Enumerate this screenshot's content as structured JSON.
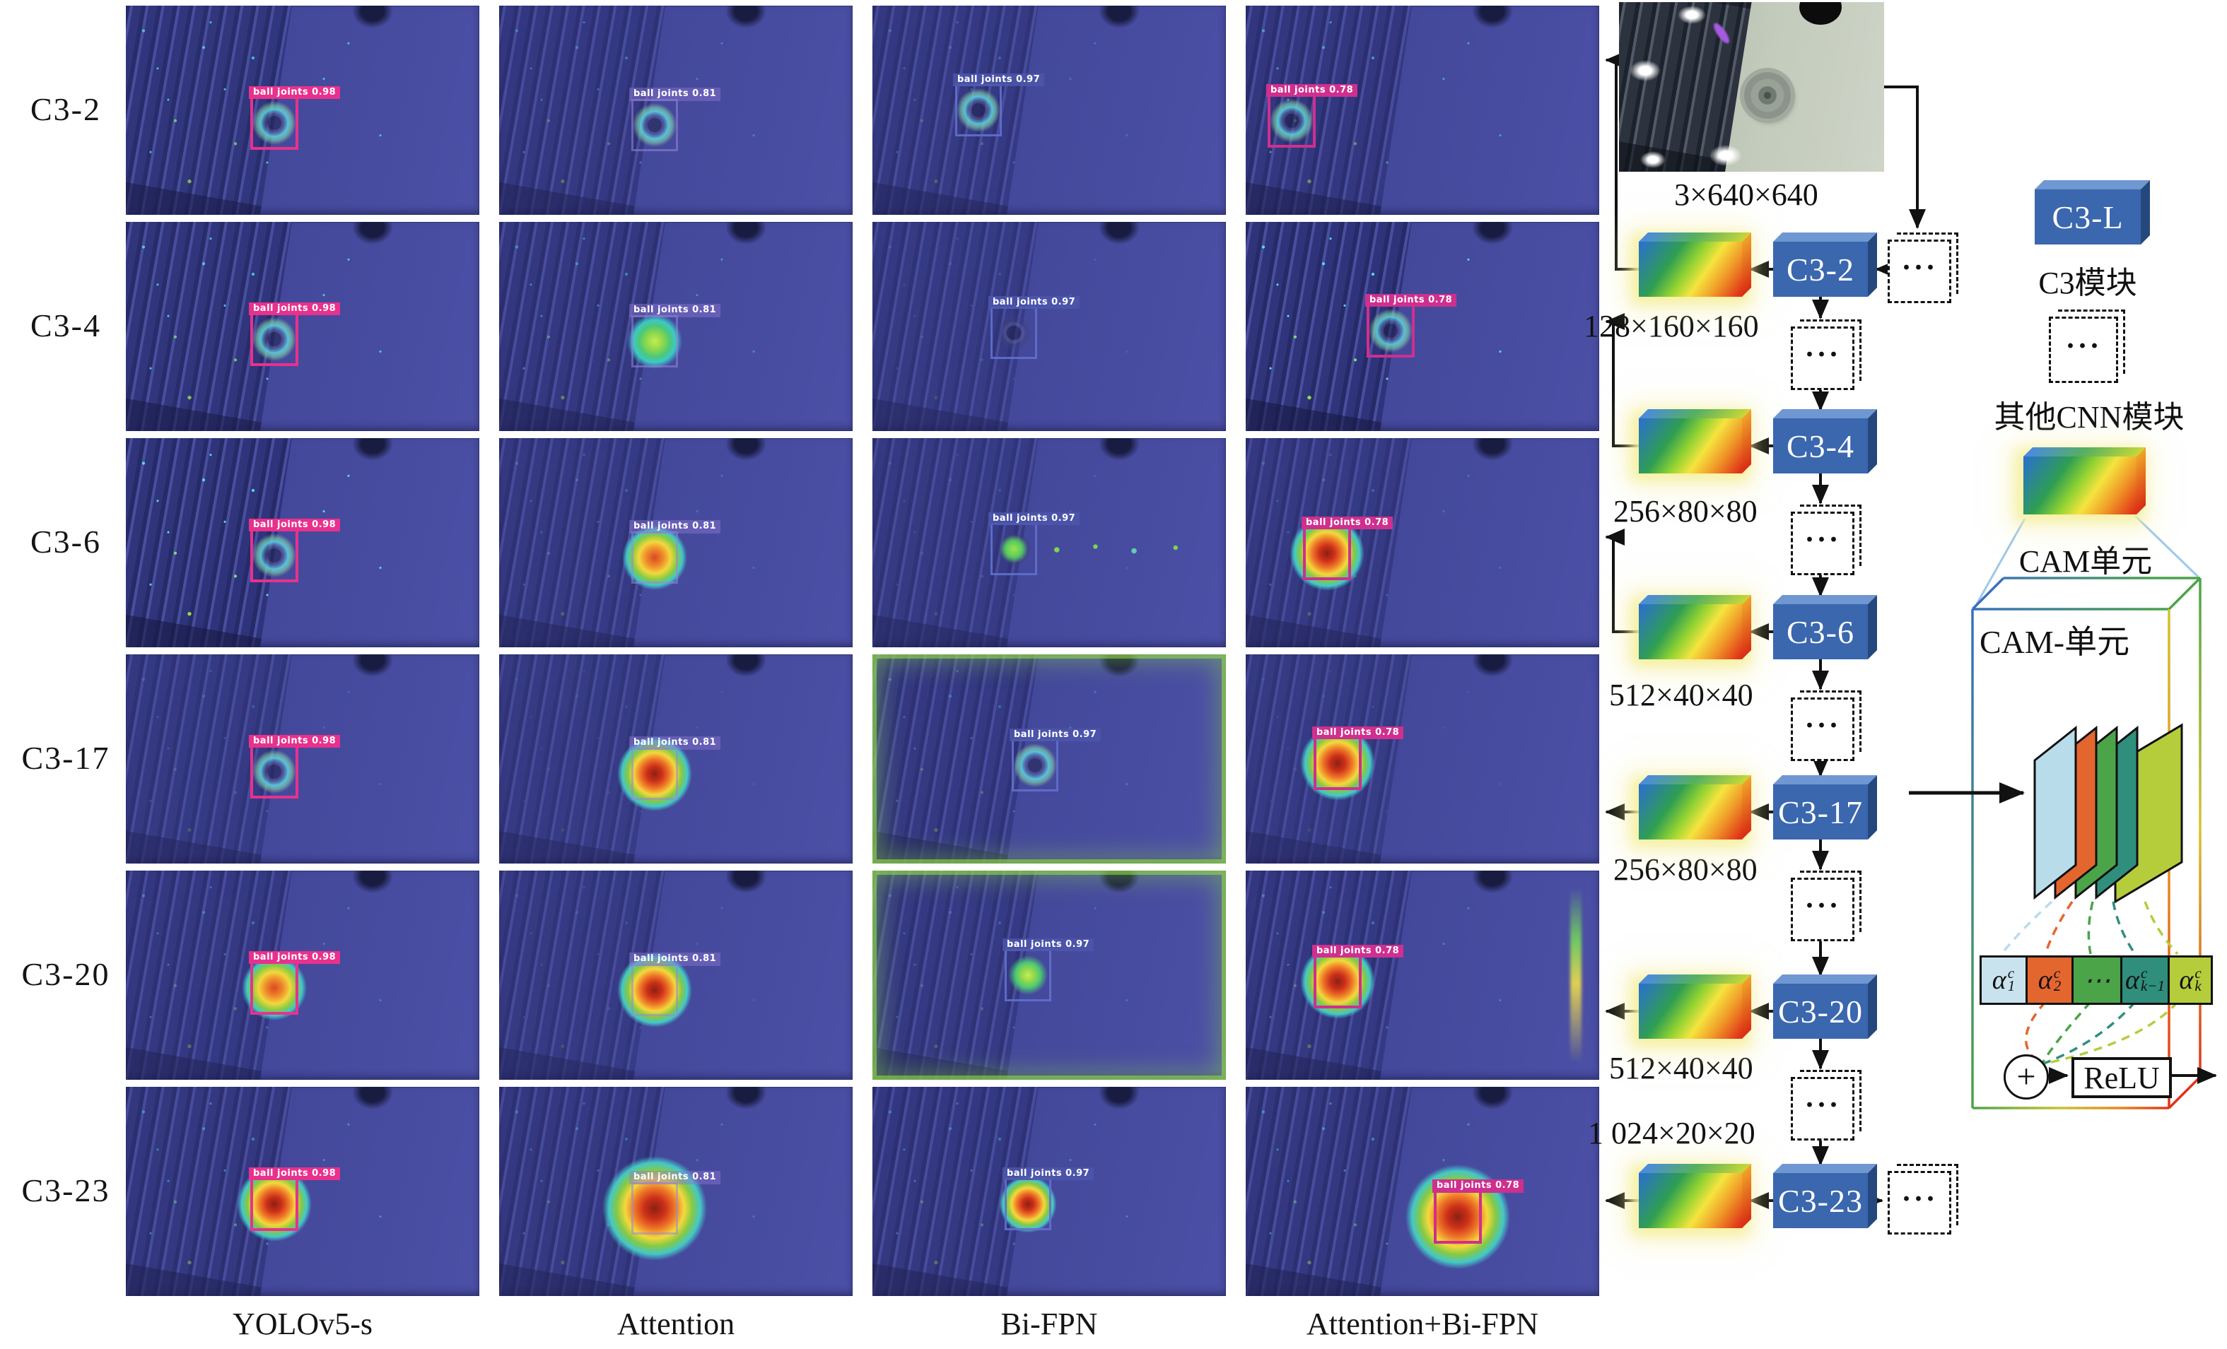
{
  "figure": {
    "row_labels": [
      "C3-2",
      "C3-4",
      "C3-6",
      "C3-17",
      "C3-20",
      "C3-23"
    ],
    "column_labels": [
      "YOLOv5-s",
      "Attention",
      "Bi-FPN",
      "Attention+Bi-FPN"
    ],
    "detection_class": "ball joints",
    "column_confidences": [
      "0.98",
      "0.81",
      "0.97",
      "0.78"
    ],
    "cells": [
      [
        {
          "det": "ball joints 0.98",
          "heat": "ring"
        },
        {
          "det": "ball joints 0.81",
          "heat": "ring"
        },
        {
          "det": "ball joints 0.97",
          "heat": "ring"
        },
        {
          "det": "ball joints 0.78",
          "heat": "ring"
        }
      ],
      [
        {
          "det": "ball joints 0.98",
          "heat": "ring"
        },
        {
          "det": "ball joints 0.81",
          "heat": "green"
        },
        {
          "det": "ball joints 0.97",
          "heat": "faint"
        },
        {
          "det": "ball joints 0.78",
          "heat": "ring"
        }
      ],
      [
        {
          "det": "ball joints 0.98",
          "heat": "ring"
        },
        {
          "det": "ball joints 0.81",
          "heat": "orange"
        },
        {
          "det": "ball joints 0.97",
          "heat": "trail"
        },
        {
          "det": "ball joints 0.78",
          "heat": "red"
        }
      ],
      [
        {
          "det": "ball joints 0.98",
          "heat": "ring"
        },
        {
          "det": "ball joints 0.81",
          "heat": "red"
        },
        {
          "det": "ball joints 0.97",
          "heat": "ring"
        },
        {
          "det": "ball joints 0.78",
          "heat": "red"
        }
      ],
      [
        {
          "det": "ball joints 0.98",
          "heat": "orange"
        },
        {
          "det": "ball joints 0.81",
          "heat": "red"
        },
        {
          "det": "ball joints 0.97",
          "heat": "green-small"
        },
        {
          "det": "ball joints 0.78",
          "heat": "red"
        }
      ],
      [
        {
          "det": "ball joints 0.98",
          "heat": "red"
        },
        {
          "det": "ball joints 0.81",
          "heat": "red-big"
        },
        {
          "det": "ball joints 0.97",
          "heat": "red-small"
        },
        {
          "det": "ball joints 0.78",
          "heat": "red-big"
        }
      ]
    ]
  },
  "architecture": {
    "input_label": "3×640×640",
    "module_ellipsis": "···",
    "stages": [
      {
        "name": "C3-2",
        "dim": "128×160×160"
      },
      {
        "name": "C3-4",
        "dim": "256×80×80"
      },
      {
        "name": "C3-6",
        "dim": "512×40×40"
      },
      {
        "name": "C3-17",
        "dim": "256×80×80"
      },
      {
        "name": "C3-20",
        "dim": "512×40×40"
      },
      {
        "name": "C3-23",
        "dim": "1 024×20×20"
      }
    ]
  },
  "legend": {
    "c3_box": "C3-L",
    "c3_label": "C3模块",
    "other_label": "其他CNN模块",
    "cam_label": "CAM单元"
  },
  "cam_unit": {
    "title": "CAM-单元",
    "weights": [
      {
        "base": "α",
        "sup": "c",
        "sub": "1"
      },
      {
        "base": "α",
        "sup": "c",
        "sub": "2"
      },
      {
        "base": "⋯",
        "sup": "",
        "sub": ""
      },
      {
        "base": "α",
        "sup": "c",
        "sub": "k−1"
      },
      {
        "base": "α",
        "sup": "c",
        "sub": "k"
      }
    ],
    "plus": "+",
    "relu": "ReLU"
  },
  "colors": {
    "c3_box_blue": "#3a67ae",
    "bbox_columns": [
      "#e8318c",
      "#9886dc",
      "#6070cd",
      "#cf2f8e"
    ],
    "weight_cells": [
      "#c9e3ee",
      "#e4662f",
      "#4ba448",
      "#2f8f7c",
      "#b5cd3b"
    ],
    "cam_gradient": [
      "#2a6ed2",
      "#2f9e52",
      "#f5e43e",
      "#e03418"
    ]
  }
}
